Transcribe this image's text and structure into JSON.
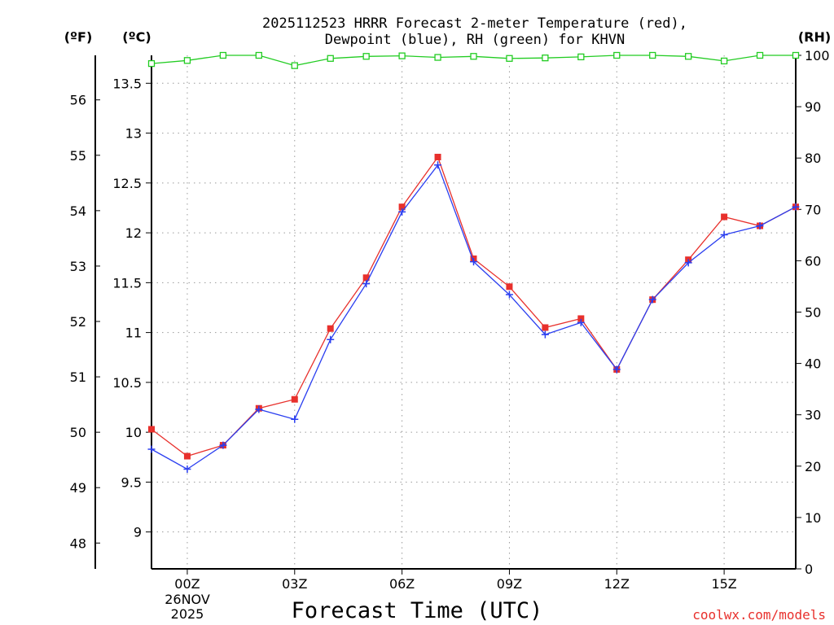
{
  "chart_data": {
    "type": "line",
    "title_line1": "2025112523 HRRR Forecast 2-meter Temperature (red),",
    "title_line2": "Dewpoint (blue), RH (green) for KHVN",
    "xlabel": "Forecast Time (UTC)",
    "credit": "coolwx.com/models",
    "fahrenheit_unit": "(ºF)",
    "celsius_unit": "(ºC)",
    "rh_unit": "(RH)",
    "x_hours": [
      -1,
      0,
      1,
      2,
      3,
      4,
      5,
      6,
      7,
      8,
      9,
      10,
      11,
      12,
      13,
      14,
      15,
      16,
      17
    ],
    "x_range": [
      -1,
      17
    ],
    "x_ticks": [
      {
        "hour": 0,
        "label": "00Z"
      },
      {
        "hour": 3,
        "label": "03Z"
      },
      {
        "hour": 6,
        "label": "06Z"
      },
      {
        "hour": 9,
        "label": "09Z"
      },
      {
        "hour": 12,
        "label": "12Z"
      },
      {
        "hour": 15,
        "label": "15Z"
      }
    ],
    "date_labels": [
      "26NOV",
      "2025"
    ],
    "celsius_range": [
      8.63,
      13.78
    ],
    "celsius_ticks": [
      "9",
      "9.5",
      "10",
      "10.5",
      "11",
      "11.5",
      "12",
      "12.5",
      "13",
      "13.5"
    ],
    "fahrenheit_ticks": [
      "48",
      "49",
      "50",
      "51",
      "52",
      "53",
      "54",
      "55",
      "56"
    ],
    "rh_range": [
      0,
      100
    ],
    "rh_ticks": [
      "0",
      "10",
      "20",
      "30",
      "40",
      "50",
      "60",
      "70",
      "80",
      "90",
      "100"
    ],
    "series": [
      {
        "name": "Temperature",
        "unit": "C",
        "color": "#e8302c",
        "marker": "square",
        "values": [
          10.03,
          9.76,
          9.87,
          10.24,
          10.33,
          11.04,
          11.55,
          12.26,
          12.76,
          11.74,
          11.46,
          11.05,
          11.14,
          10.63,
          11.33,
          11.73,
          12.16,
          12.07,
          12.26
        ]
      },
      {
        "name": "Dewpoint",
        "unit": "C",
        "color": "#2a3ef0",
        "marker": "plus",
        "values": [
          9.83,
          9.63,
          9.87,
          10.23,
          10.13,
          10.93,
          11.49,
          12.21,
          12.68,
          11.71,
          11.38,
          10.98,
          11.1,
          10.63,
          11.33,
          11.7,
          11.98,
          12.07,
          12.26
        ]
      },
      {
        "name": "RH",
        "unit": "%",
        "color": "#22cc22",
        "marker": "open-square",
        "values": [
          98.4,
          99.0,
          100,
          100,
          98.0,
          99.4,
          99.8,
          99.9,
          99.6,
          99.8,
          99.4,
          99.5,
          99.7,
          100,
          100,
          99.8,
          98.9,
          100,
          100
        ]
      }
    ]
  }
}
